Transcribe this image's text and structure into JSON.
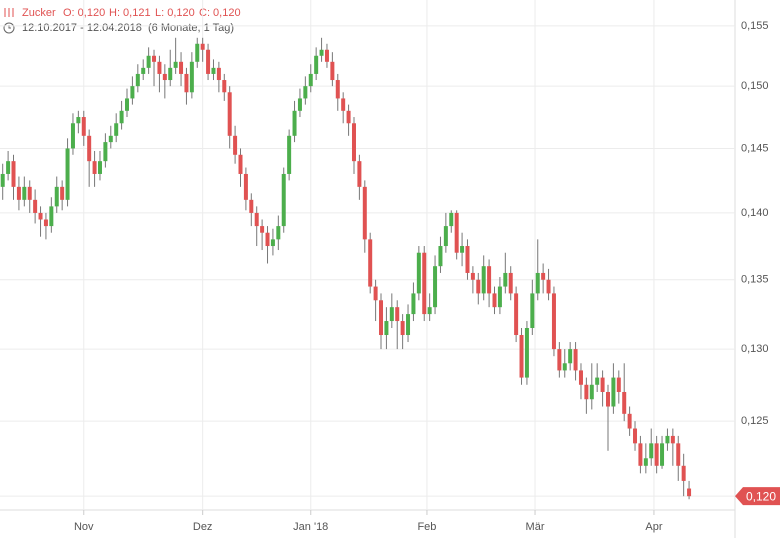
{
  "chart_data": {
    "type": "candlestick",
    "title": "Zucker",
    "header": {
      "open": "O: 0,120",
      "high": "H: 0,121",
      "low": "L: 0,120",
      "close": "C: 0,120",
      "range": "12.10.2017 - 12.04.2018",
      "period": "(6 Monate, 1 Tag)"
    },
    "last_price": {
      "value": 0.12,
      "label": "0,120"
    },
    "up_color": "#4cae4c",
    "down_color": "#e05252",
    "log_scale": true,
    "grid": true,
    "ylim": [
      0.1191,
      0.1572
    ],
    "yticks": [
      {
        "value": 0.12,
        "label": "0,120"
      },
      {
        "value": 0.125,
        "label": "0,125"
      },
      {
        "value": 0.13,
        "label": "0,130"
      },
      {
        "value": 0.135,
        "label": "0,135"
      },
      {
        "value": 0.14,
        "label": "0,140"
      },
      {
        "value": 0.145,
        "label": "0,145"
      },
      {
        "value": 0.15,
        "label": "0,150"
      },
      {
        "value": 0.155,
        "label": "0,155"
      }
    ],
    "xlim": [
      -0.5,
      135.5
    ],
    "xticks": [
      {
        "value": 15,
        "label": "Nov"
      },
      {
        "value": 37,
        "label": "Dez"
      },
      {
        "value": 57,
        "label": "Jan '18"
      },
      {
        "value": 78.5,
        "label": "Feb"
      },
      {
        "value": 98.5,
        "label": "Mär"
      },
      {
        "value": 120.5,
        "label": "Apr"
      }
    ],
    "open": [
      0.142,
      0.143,
      0.144,
      0.142,
      0.141,
      0.142,
      0.141,
      0.14,
      0.1395,
      0.139,
      0.1405,
      0.142,
      0.141,
      0.145,
      0.147,
      0.1475,
      0.146,
      0.144,
      0.143,
      0.144,
      0.1455,
      0.146,
      0.147,
      0.148,
      0.149,
      0.15,
      0.151,
      0.1515,
      0.1525,
      0.152,
      0.151,
      0.1505,
      0.1515,
      0.152,
      0.151,
      0.1495,
      0.152,
      0.1535,
      0.153,
      0.151,
      0.1515,
      0.1505,
      0.1495,
      0.146,
      0.1445,
      0.143,
      0.141,
      0.14,
      0.139,
      0.1385,
      0.1375,
      0.138,
      0.139,
      0.143,
      0.146,
      0.148,
      0.149,
      0.15,
      0.151,
      0.1525,
      0.153,
      0.152,
      0.1505,
      0.149,
      0.148,
      0.147,
      0.144,
      0.142,
      0.138,
      0.1345,
      0.1335,
      0.131,
      0.132,
      0.133,
      0.132,
      0.131,
      0.1325,
      0.134,
      0.137,
      0.1325,
      0.133,
      0.136,
      0.1375,
      0.139,
      0.14,
      0.137,
      0.1375,
      0.1355,
      0.135,
      0.134,
      0.136,
      0.134,
      0.133,
      0.1345,
      0.1355,
      0.134,
      0.131,
      0.128,
      0.1315,
      0.134,
      0.1355,
      0.135,
      0.134,
      0.13,
      0.1285,
      0.129,
      0.13,
      0.1285,
      0.1275,
      0.1265,
      0.1275,
      0.128,
      0.127,
      0.126,
      0.128,
      0.127,
      0.1255,
      0.1245,
      0.1235,
      0.122,
      0.1225,
      0.1235,
      0.122,
      0.1235,
      0.124,
      0.1235,
      0.122,
      0.1205
    ],
    "high": [
      0.1438,
      0.1448,
      0.1445,
      0.1428,
      0.1428,
      0.1425,
      0.1418,
      0.1405,
      0.14,
      0.1412,
      0.1428,
      0.1425,
      0.1458,
      0.1478,
      0.148,
      0.148,
      0.1465,
      0.1448,
      0.1448,
      0.1462,
      0.1468,
      0.1478,
      0.1488,
      0.1498,
      0.1508,
      0.1518,
      0.1522,
      0.1532,
      0.153,
      0.1525,
      0.1518,
      0.153,
      0.154,
      0.1528,
      0.1515,
      0.1528,
      0.154,
      0.154,
      0.1535,
      0.1522,
      0.152,
      0.151,
      0.15,
      0.1468,
      0.145,
      0.1435,
      0.1415,
      0.1405,
      0.1395,
      0.139,
      0.1388,
      0.1398,
      0.1435,
      0.1465,
      0.1488,
      0.1498,
      0.1508,
      0.1518,
      0.1532,
      0.154,
      0.1535,
      0.1528,
      0.151,
      0.1495,
      0.1485,
      0.1475,
      0.1445,
      0.1425,
      0.1385,
      0.135,
      0.134,
      0.133,
      0.134,
      0.1335,
      0.1325,
      0.1332,
      0.1348,
      0.1375,
      0.1375,
      0.134,
      0.1368,
      0.1382,
      0.14,
      0.1402,
      0.1402,
      0.1385,
      0.138,
      0.136,
      0.1355,
      0.1368,
      0.1365,
      0.1345,
      0.1352,
      0.137,
      0.136,
      0.1345,
      0.1315,
      0.132,
      0.135,
      0.138,
      0.1362,
      0.1358,
      0.1345,
      0.1305,
      0.13,
      0.1305,
      0.1305,
      0.129,
      0.128,
      0.129,
      0.129,
      0.1285,
      0.1275,
      0.129,
      0.1285,
      0.129,
      0.126,
      0.125,
      0.124,
      0.1235,
      0.1245,
      0.124,
      0.124,
      0.1245,
      0.1245,
      0.124,
      0.1228,
      0.121
    ],
    "low": [
      0.141,
      0.1425,
      0.141,
      0.1402,
      0.1405,
      0.14,
      0.1392,
      0.1382,
      0.138,
      0.1385,
      0.14,
      0.1402,
      0.1405,
      0.1445,
      0.1462,
      0.1452,
      0.142,
      0.142,
      0.1425,
      0.1435,
      0.145,
      0.1455,
      0.1465,
      0.1475,
      0.1485,
      0.1495,
      0.1505,
      0.151,
      0.15,
      0.1495,
      0.149,
      0.15,
      0.151,
      0.15,
      0.1485,
      0.149,
      0.1515,
      0.152,
      0.1505,
      0.1505,
      0.1495,
      0.1488,
      0.145,
      0.1438,
      0.142,
      0.1402,
      0.139,
      0.1375,
      0.1372,
      0.1362,
      0.1368,
      0.1372,
      0.1385,
      0.1425,
      0.1455,
      0.1475,
      0.1485,
      0.1495,
      0.1505,
      0.152,
      0.1515,
      0.15,
      0.148,
      0.147,
      0.146,
      0.143,
      0.141,
      0.137,
      0.134,
      0.132,
      0.13,
      0.13,
      0.1315,
      0.13,
      0.13,
      0.1305,
      0.132,
      0.1335,
      0.132,
      0.132,
      0.1325,
      0.1355,
      0.137,
      0.1385,
      0.1365,
      0.136,
      0.135,
      0.134,
      0.1332,
      0.1335,
      0.133,
      0.1325,
      0.1325,
      0.134,
      0.1335,
      0.1305,
      0.1275,
      0.1275,
      0.131,
      0.1335,
      0.134,
      0.1335,
      0.1295,
      0.128,
      0.128,
      0.1285,
      0.1278,
      0.1265,
      0.1255,
      0.1258,
      0.127,
      0.126,
      0.123,
      0.1255,
      0.1262,
      0.125,
      0.124,
      0.123,
      0.1215,
      0.1215,
      0.122,
      0.1215,
      0.1218,
      0.123,
      0.122,
      0.121,
      0.12,
      0.1198
    ],
    "close": [
      0.143,
      0.144,
      0.142,
      0.141,
      0.142,
      0.141,
      0.14,
      0.1395,
      0.139,
      0.1405,
      0.142,
      0.141,
      0.145,
      0.147,
      0.1475,
      0.146,
      0.144,
      0.143,
      0.144,
      0.1455,
      0.146,
      0.147,
      0.148,
      0.149,
      0.15,
      0.151,
      0.1515,
      0.1525,
      0.152,
      0.151,
      0.1505,
      0.1515,
      0.152,
      0.151,
      0.1495,
      0.152,
      0.1535,
      0.153,
      0.151,
      0.1515,
      0.1505,
      0.1495,
      0.146,
      0.1445,
      0.143,
      0.141,
      0.14,
      0.139,
      0.1385,
      0.1375,
      0.138,
      0.139,
      0.143,
      0.146,
      0.148,
      0.149,
      0.15,
      0.151,
      0.1525,
      0.153,
      0.152,
      0.1505,
      0.149,
      0.148,
      0.147,
      0.144,
      0.142,
      0.138,
      0.1345,
      0.1335,
      0.131,
      0.132,
      0.133,
      0.132,
      0.131,
      0.1325,
      0.134,
      0.137,
      0.1325,
      0.133,
      0.136,
      0.1375,
      0.139,
      0.14,
      0.137,
      0.1375,
      0.1355,
      0.135,
      0.134,
      0.136,
      0.134,
      0.133,
      0.1345,
      0.1355,
      0.134,
      0.131,
      0.128,
      0.1315,
      0.134,
      0.1355,
      0.135,
      0.134,
      0.13,
      0.1285,
      0.129,
      0.13,
      0.1285,
      0.1275,
      0.1265,
      0.1275,
      0.128,
      0.127,
      0.126,
      0.128,
      0.127,
      0.1255,
      0.1245,
      0.1235,
      0.122,
      0.1225,
      0.1235,
      0.122,
      0.1235,
      0.124,
      0.1235,
      0.122,
      0.121,
      0.12
    ]
  }
}
